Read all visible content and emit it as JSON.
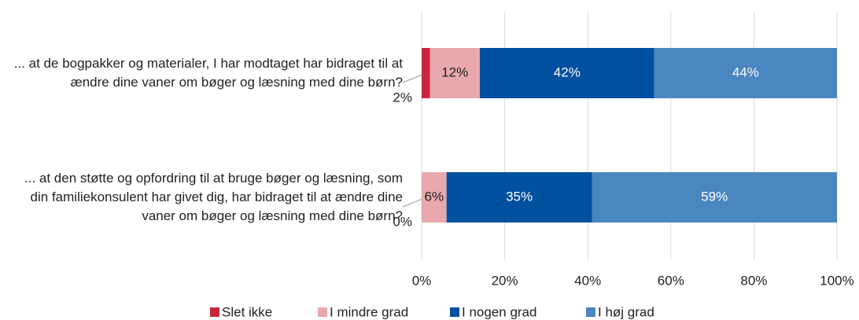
{
  "chart_data": {
    "type": "stacked_barh",
    "categories": [
      "... at de bogpakker og materialer, I har modtaget har bidraget til at ændre dine vaner om bøger og læsning med dine børn?",
      "...  at den støtte og opfordring til at bruge bøger og læsning, som din familiekonsulent har givet dig, har bidraget til at ændre dine vaner om bøger og læsning med dine børn?"
    ],
    "series": [
      {
        "name": "Slet ikke",
        "color": "#c8283c",
        "values": [
          2,
          0
        ],
        "value_labels": [
          "2%",
          "0%"
        ]
      },
      {
        "name": "I mindre grad",
        "color": "#e8a8ad",
        "values": [
          12,
          6
        ],
        "value_labels": [
          "12%",
          "6%"
        ]
      },
      {
        "name": "I nogen grad",
        "color": "#0050a0",
        "values": [
          42,
          35
        ],
        "value_labels": [
          "42%",
          "35%"
        ]
      },
      {
        "name": "I høj grad",
        "color": "#4a86c0",
        "values": [
          44,
          59
        ],
        "value_labels": [
          "44%",
          "59%"
        ]
      }
    ],
    "xlim": [
      0,
      100
    ],
    "xticks": [
      {
        "value": 0,
        "label": "0%"
      },
      {
        "value": 20,
        "label": "20%"
      },
      {
        "value": 40,
        "label": "40%"
      },
      {
        "value": 60,
        "label": "60%"
      },
      {
        "value": 80,
        "label": "80%"
      },
      {
        "value": 100,
        "label": "100%"
      }
    ],
    "grid": true,
    "legend": "bottom"
  }
}
